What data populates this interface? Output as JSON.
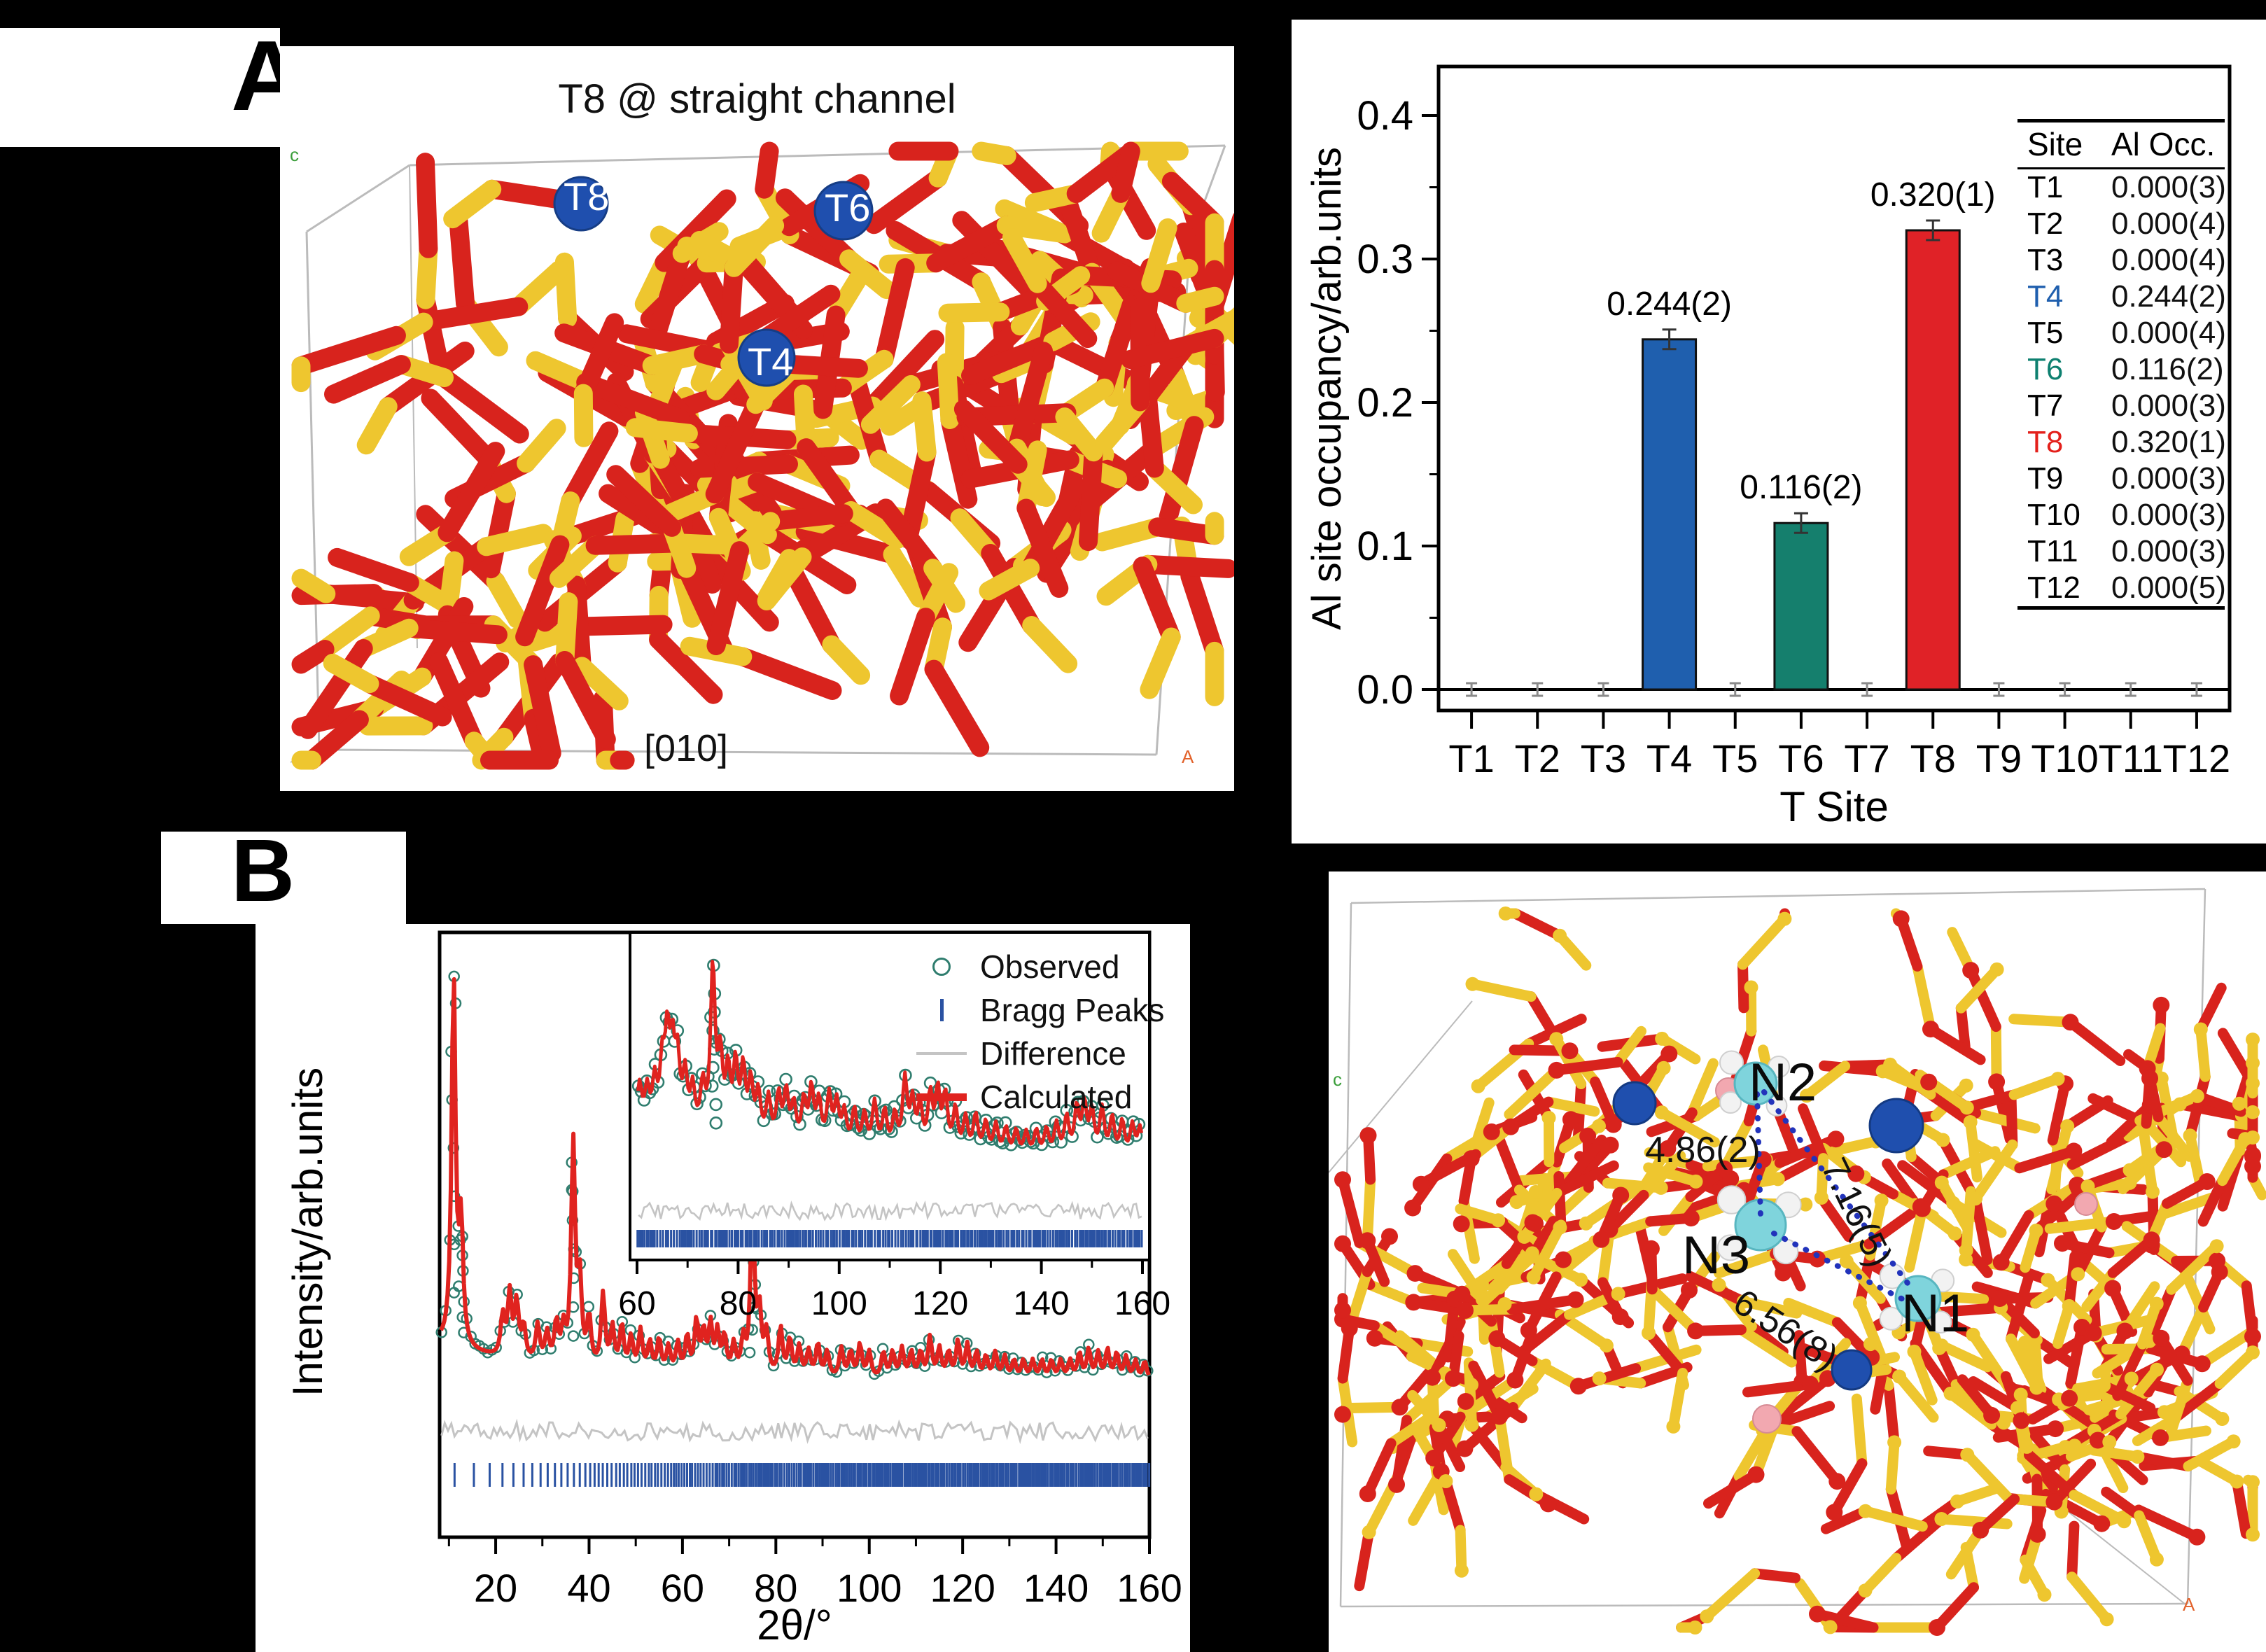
{
  "panels": {
    "a": {
      "label": "A"
    },
    "b": {
      "label": "B"
    }
  },
  "panel_a": {
    "title": "T8 @ straight channel",
    "site_markers": [
      "T8",
      "T6",
      "T4"
    ],
    "direction_label": "[010]",
    "cell_axis_c": "c",
    "cell_axis_a": "A"
  },
  "colors": {
    "background": "#000000",
    "panel": "#ffffff",
    "bar_blue": "#1f5fae",
    "bar_teal": "#157f6d",
    "bar_red": "#e02227",
    "observed": "#2f7d6e",
    "bragg": "#2a52a2",
    "difference": "#c4c4c4",
    "calculated": "#e0231f",
    "stick_red": "#d8231d",
    "stick_yellow": "#eec62f",
    "sphere_blue": "#1f4fae",
    "sphere_cyan": "#7fd4dc",
    "sphere_white": "#f2f2f2",
    "sphere_pink": "#f2a8b0",
    "cell_line": "#bbbbbb",
    "dotted_line": "#2233bb",
    "marker_c_green": "#3a9e3a",
    "marker_a_orange": "#e2622b"
  },
  "chart_data": [
    {
      "id": "al_site_occupancy",
      "type": "bar",
      "title": "",
      "xlabel": "T Site",
      "ylabel": "Al site occupancy/arb.units",
      "categories": [
        "T1",
        "T2",
        "T3",
        "T4",
        "T5",
        "T6",
        "T7",
        "T8",
        "T9",
        "T10",
        "T11",
        "T12"
      ],
      "values": [
        0,
        0,
        0,
        0.244,
        0,
        0.116,
        0,
        0.32,
        0,
        0,
        0,
        0
      ],
      "errors": [
        0.003,
        0.004,
        0.004,
        0.002,
        0.004,
        0.002,
        0.003,
        0.001,
        0.003,
        0.003,
        0.003,
        0.005
      ],
      "bar_labels": {
        "T4": "0.244(2)",
        "T6": "0.116(2)",
        "T8": "0.320(1)"
      },
      "bar_colors": {
        "T4": "#1f5fae",
        "T6": "#157f6d",
        "T8": "#e02227"
      },
      "ylim": [
        0,
        0.42
      ],
      "yticks": [
        "0.0",
        "0.1",
        "0.2",
        "0.3",
        "0.4"
      ],
      "grid": false,
      "table": {
        "headers": [
          "Site",
          "Al Occ."
        ],
        "rows": [
          [
            "T1",
            "0.000(3)"
          ],
          [
            "T2",
            "0.000(4)"
          ],
          [
            "T3",
            "0.000(4)"
          ],
          [
            "T4",
            "0.244(2)"
          ],
          [
            "T5",
            "0.000(4)"
          ],
          [
            "T6",
            "0.116(2)"
          ],
          [
            "T7",
            "0.000(3)"
          ],
          [
            "T8",
            "0.320(1)"
          ],
          [
            "T9",
            "0.000(3)"
          ],
          [
            "T10",
            "0.000(3)"
          ],
          [
            "T11",
            "0.000(3)"
          ],
          [
            "T12",
            "0.000(5)"
          ]
        ],
        "row_colors": {
          "T4": "#1f5fae",
          "T6": "#0e8070",
          "T8": "#e3201b"
        }
      }
    },
    {
      "id": "rietveld_main",
      "type": "line",
      "xlabel": "2θ/°",
      "ylabel": "Intensity/arb.units",
      "xlim": [
        8,
        160
      ],
      "xticks": [
        20,
        40,
        60,
        80,
        100,
        120,
        140,
        160
      ],
      "series": [
        "Observed",
        "Bragg Peaks",
        "Difference",
        "Calculated"
      ],
      "peaks": [
        [
          11,
          1.0
        ],
        [
          12.6,
          0.32
        ],
        [
          21.5,
          0.11
        ],
        [
          23,
          0.17
        ],
        [
          24.5,
          0.15
        ],
        [
          26,
          0.09
        ],
        [
          29,
          0.1
        ],
        [
          31,
          0.08
        ],
        [
          33,
          0.11
        ],
        [
          34.5,
          0.09
        ],
        [
          36.6,
          0.6
        ],
        [
          38,
          0.22
        ],
        [
          40,
          0.13
        ],
        [
          43,
          0.2
        ],
        [
          45,
          0.11
        ],
        [
          47,
          0.12
        ],
        [
          49,
          0.09
        ],
        [
          51,
          0.11
        ],
        [
          53,
          0.08
        ],
        [
          55,
          0.09
        ],
        [
          57,
          0.07
        ],
        [
          59,
          0.08
        ],
        [
          61,
          0.1
        ],
        [
          63,
          0.14
        ],
        [
          64.5,
          0.11
        ],
        [
          66,
          0.13
        ],
        [
          67.5,
          0.11
        ],
        [
          69,
          0.1
        ],
        [
          71,
          0.08
        ],
        [
          73,
          0.09
        ],
        [
          75,
          0.47
        ],
        [
          76.5,
          0.16
        ],
        [
          78,
          0.11
        ],
        [
          81,
          0.13
        ],
        [
          83,
          0.1
        ],
        [
          85,
          0.08
        ],
        [
          87,
          0.07
        ],
        [
          89,
          0.09
        ],
        [
          91,
          0.07
        ],
        [
          94,
          0.08
        ],
        [
          96,
          0.07
        ],
        [
          98,
          0.09
        ],
        [
          100,
          0.07
        ],
        [
          103,
          0.07
        ],
        [
          105,
          0.07
        ],
        [
          107,
          0.08
        ],
        [
          109,
          0.07
        ],
        [
          111,
          0.07
        ],
        [
          113,
          0.11
        ],
        [
          115,
          0.08
        ],
        [
          117,
          0.07
        ],
        [
          119,
          0.1
        ],
        [
          121,
          0.09
        ],
        [
          123,
          0.07
        ],
        [
          125,
          0.06
        ],
        [
          127,
          0.07
        ],
        [
          129,
          0.06
        ],
        [
          131,
          0.05
        ],
        [
          133,
          0.05
        ],
        [
          135,
          0.05
        ],
        [
          137,
          0.05
        ],
        [
          139,
          0.05
        ],
        [
          141,
          0.05
        ],
        [
          143,
          0.05
        ],
        [
          145,
          0.07
        ],
        [
          147,
          0.08
        ],
        [
          149,
          0.07
        ],
        [
          151,
          0.08
        ],
        [
          153,
          0.07
        ],
        [
          155,
          0.06
        ],
        [
          157,
          0.05
        ],
        [
          159,
          0.05
        ]
      ]
    },
    {
      "id": "rietveld_inset",
      "type": "line",
      "xlabel": "",
      "xlim": [
        60,
        160
      ],
      "xticks": [
        60,
        80,
        100,
        120,
        140,
        160
      ],
      "peaks": [
        [
          60.5,
          0.26
        ],
        [
          62,
          0.23
        ],
        [
          63.5,
          0.28
        ],
        [
          65,
          0.37
        ],
        [
          66,
          0.51
        ],
        [
          67,
          0.44
        ],
        [
          68,
          0.4
        ],
        [
          69.5,
          0.33
        ],
        [
          71,
          0.26
        ],
        [
          73,
          0.28
        ],
        [
          75,
          1.0
        ],
        [
          76.5,
          0.44
        ],
        [
          78,
          0.37
        ],
        [
          79.5,
          0.42
        ],
        [
          81,
          0.4
        ],
        [
          82.5,
          0.33
        ],
        [
          84,
          0.28
        ],
        [
          86,
          0.26
        ],
        [
          88,
          0.28
        ],
        [
          89.5,
          0.3
        ],
        [
          91,
          0.23
        ],
        [
          93,
          0.26
        ],
        [
          94.5,
          0.33
        ],
        [
          96,
          0.26
        ],
        [
          98,
          0.3
        ],
        [
          99.5,
          0.26
        ],
        [
          101,
          0.21
        ],
        [
          103,
          0.23
        ],
        [
          105,
          0.21
        ],
        [
          107,
          0.28
        ],
        [
          109,
          0.23
        ],
        [
          111,
          0.21
        ],
        [
          113,
          0.42
        ],
        [
          114.5,
          0.28
        ],
        [
          116,
          0.26
        ],
        [
          118,
          0.33
        ],
        [
          119.5,
          0.35
        ],
        [
          121,
          0.33
        ],
        [
          123,
          0.26
        ],
        [
          125,
          0.21
        ],
        [
          127,
          0.23
        ],
        [
          129,
          0.19
        ],
        [
          131,
          0.18
        ],
        [
          133,
          0.16
        ],
        [
          135,
          0.15
        ],
        [
          137,
          0.14
        ],
        [
          139,
          0.15
        ],
        [
          141,
          0.16
        ],
        [
          143,
          0.19
        ],
        [
          145,
          0.23
        ],
        [
          147,
          0.28
        ],
        [
          148.5,
          0.3
        ],
        [
          150,
          0.26
        ],
        [
          152,
          0.28
        ],
        [
          154,
          0.23
        ],
        [
          156,
          0.21
        ],
        [
          158,
          0.19
        ],
        [
          159.5,
          0.18
        ]
      ]
    }
  ],
  "xrd": {
    "legend": [
      "Observed",
      "Bragg Peaks",
      "Difference",
      "Calculated"
    ]
  },
  "panel_b_right": {
    "n_labels": [
      "N2",
      "N3",
      "N1"
    ],
    "distances": [
      "4.86(2)",
      "7.16(5)",
      "6.56(8)"
    ],
    "cell_axis_c": "c",
    "cell_axis_a": "A"
  }
}
